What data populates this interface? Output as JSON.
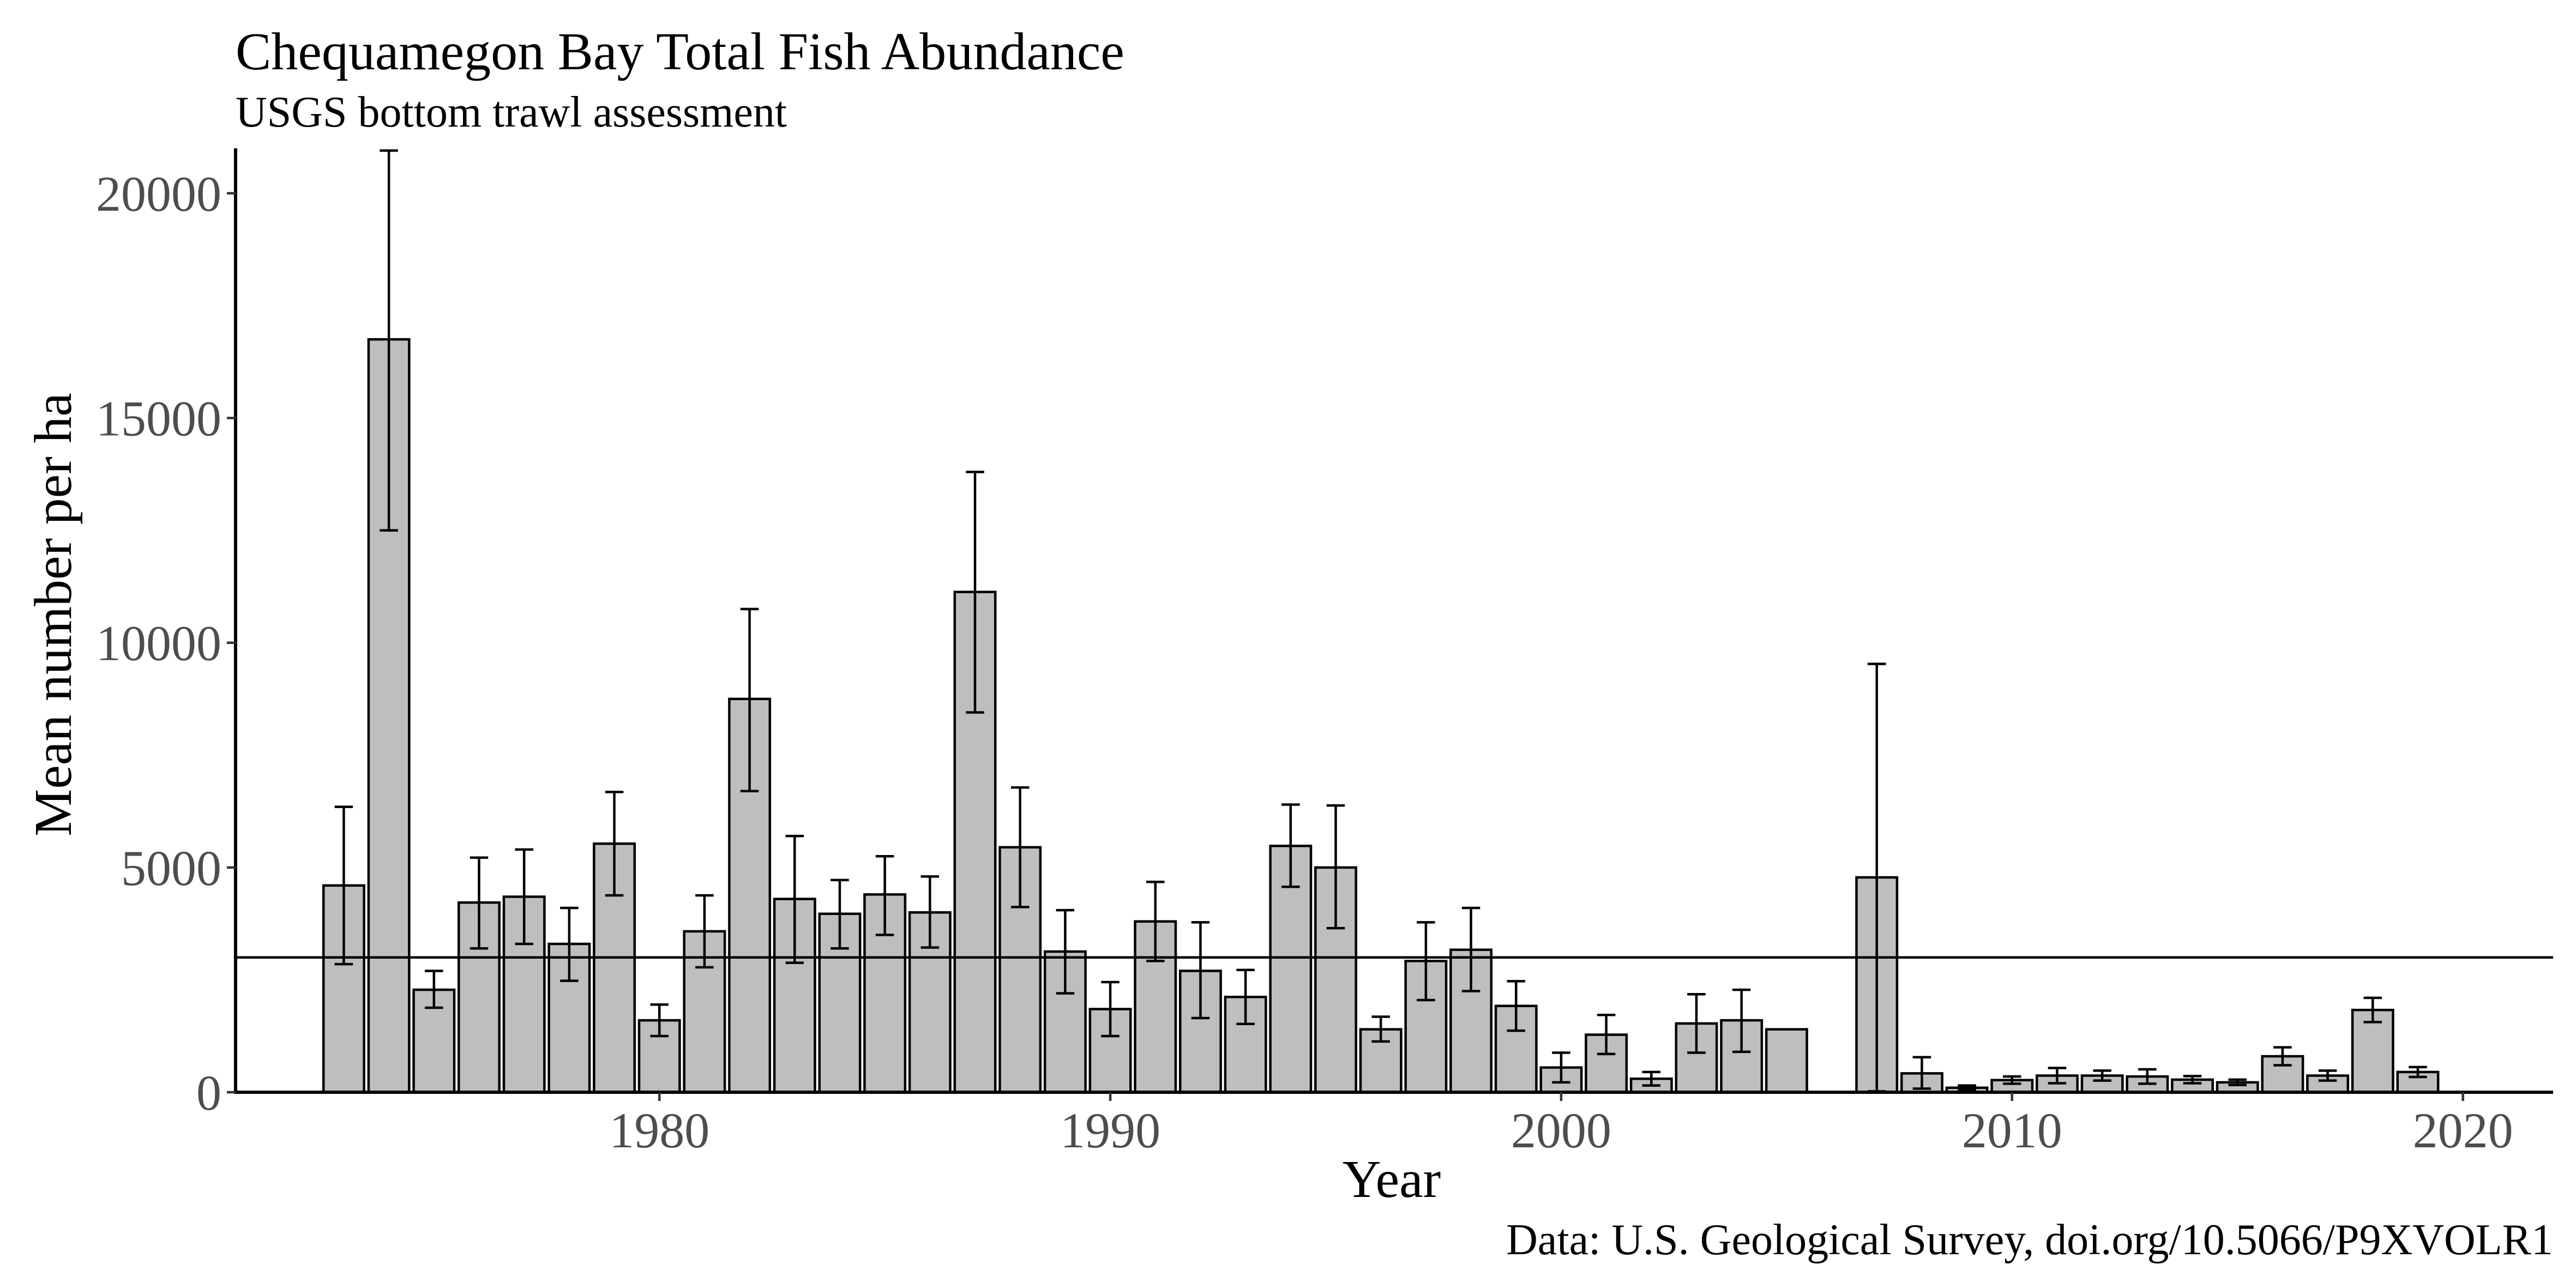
{
  "chart_data": {
    "type": "bar",
    "title": "Chequamegon Bay Total Fish Abundance",
    "subtitle": "USGS bottom trawl assessment",
    "xlabel": "Year",
    "ylabel": "Mean number per ha",
    "caption": "Data: U.S. Geological Survey, doi.org/10.5066/P9XVOLR1",
    "xlim": [
      1970.6,
      2022
    ],
    "ylim": [
      0,
      21000
    ],
    "xticks": [
      1980,
      1990,
      2000,
      2010,
      2020
    ],
    "yticks": [
      0,
      5000,
      10000,
      15000,
      20000
    ],
    "reference_line": 3000,
    "grid": false,
    "bar_color": "#bebebe",
    "data": [
      {
        "year": 1973,
        "value": 4600,
        "lower": 2850,
        "upper": 6350
      },
      {
        "year": 1974,
        "value": 16750,
        "lower": 12500,
        "upper": 20950
      },
      {
        "year": 1975,
        "value": 2280,
        "lower": 1880,
        "upper": 2700
      },
      {
        "year": 1976,
        "value": 4220,
        "lower": 3200,
        "upper": 5220
      },
      {
        "year": 1977,
        "value": 4350,
        "lower": 3300,
        "upper": 5400
      },
      {
        "year": 1978,
        "value": 3300,
        "lower": 2480,
        "upper": 4100
      },
      {
        "year": 1979,
        "value": 5530,
        "lower": 4380,
        "upper": 6680
      },
      {
        "year": 1980,
        "value": 1600,
        "lower": 1250,
        "upper": 1950
      },
      {
        "year": 1981,
        "value": 3580,
        "lower": 2780,
        "upper": 4380
      },
      {
        "year": 1982,
        "value": 8750,
        "lower": 6700,
        "upper": 10750
      },
      {
        "year": 1983,
        "value": 4300,
        "lower": 2880,
        "upper": 5700
      },
      {
        "year": 1984,
        "value": 3970,
        "lower": 3200,
        "upper": 4720
      },
      {
        "year": 1985,
        "value": 4400,
        "lower": 3500,
        "upper": 5250
      },
      {
        "year": 1986,
        "value": 4000,
        "lower": 3220,
        "upper": 4800
      },
      {
        "year": 1987,
        "value": 11130,
        "lower": 8450,
        "upper": 13800
      },
      {
        "year": 1988,
        "value": 5450,
        "lower": 4120,
        "upper": 6780
      },
      {
        "year": 1989,
        "value": 3130,
        "lower": 2200,
        "upper": 4050
      },
      {
        "year": 1990,
        "value": 1850,
        "lower": 1250,
        "upper": 2450
      },
      {
        "year": 1991,
        "value": 3800,
        "lower": 2920,
        "upper": 4680
      },
      {
        "year": 1992,
        "value": 2700,
        "lower": 1650,
        "upper": 3780
      },
      {
        "year": 1993,
        "value": 2120,
        "lower": 1520,
        "upper": 2720
      },
      {
        "year": 1994,
        "value": 5480,
        "lower": 4570,
        "upper": 6400
      },
      {
        "year": 1995,
        "value": 5000,
        "lower": 3650,
        "upper": 6380
      },
      {
        "year": 1996,
        "value": 1400,
        "lower": 1130,
        "upper": 1680
      },
      {
        "year": 1997,
        "value": 2920,
        "lower": 2050,
        "upper": 3780
      },
      {
        "year": 1998,
        "value": 3170,
        "lower": 2250,
        "upper": 4100
      },
      {
        "year": 1999,
        "value": 1920,
        "lower": 1370,
        "upper": 2470
      },
      {
        "year": 2000,
        "value": 550,
        "lower": 220,
        "upper": 880
      },
      {
        "year": 2001,
        "value": 1280,
        "lower": 850,
        "upper": 1720
      },
      {
        "year": 2002,
        "value": 300,
        "lower": 150,
        "upper": 450
      },
      {
        "year": 2003,
        "value": 1530,
        "lower": 880,
        "upper": 2180
      },
      {
        "year": 2004,
        "value": 1600,
        "lower": 900,
        "upper": 2280
      },
      {
        "year": 2005,
        "value": 1400
      },
      {
        "year": 2007,
        "value": 4780,
        "lower": 20,
        "upper": 9530
      },
      {
        "year": 2008,
        "value": 420,
        "lower": 80,
        "upper": 780
      },
      {
        "year": 2009,
        "value": 100,
        "lower": 50,
        "upper": 150
      },
      {
        "year": 2010,
        "value": 270,
        "lower": 190,
        "upper": 350
      },
      {
        "year": 2011,
        "value": 370,
        "lower": 200,
        "upper": 540
      },
      {
        "year": 2012,
        "value": 370,
        "lower": 260,
        "upper": 480
      },
      {
        "year": 2013,
        "value": 350,
        "lower": 190,
        "upper": 510
      },
      {
        "year": 2014,
        "value": 280,
        "lower": 200,
        "upper": 360
      },
      {
        "year": 2015,
        "value": 220,
        "lower": 160,
        "upper": 280
      },
      {
        "year": 2016,
        "value": 800,
        "lower": 600,
        "upper": 1000
      },
      {
        "year": 2017,
        "value": 370,
        "lower": 260,
        "upper": 480
      },
      {
        "year": 2018,
        "value": 1830,
        "lower": 1560,
        "upper": 2100
      },
      {
        "year": 2019,
        "value": 450,
        "lower": 340,
        "upper": 560
      }
    ]
  }
}
